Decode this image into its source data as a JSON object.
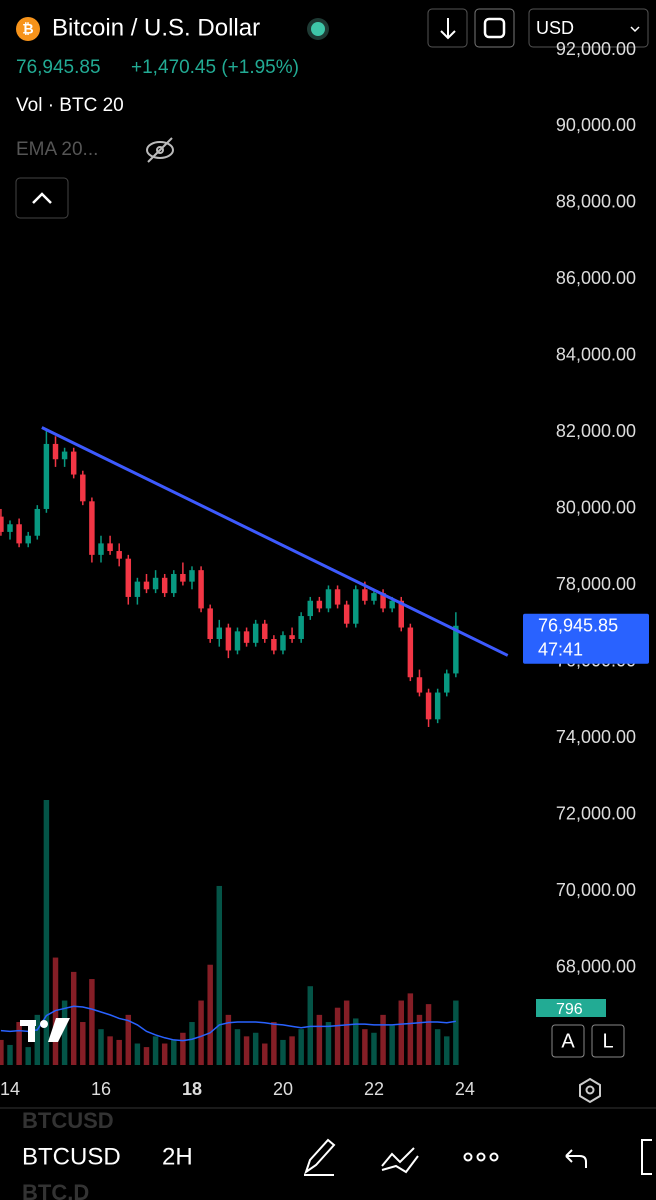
{
  "header": {
    "title": "Bitcoin / U.S. Dollar",
    "price": "76,945.85",
    "change": "+1,470.45 (+1.95%)",
    "volume_label": "Vol · BTC 20",
    "ema_label": "EMA 20...",
    "currency": "USD"
  },
  "chart_data": {
    "type": "candlestick",
    "x": [
      13.8,
      14.0,
      14.2,
      14.4,
      14.6,
      14.8,
      15.0,
      15.2,
      15.4,
      15.6,
      15.8,
      16.0,
      16.2,
      16.4,
      16.6,
      16.8,
      17.0,
      17.2,
      17.4,
      17.6,
      17.8,
      18.0,
      18.2,
      18.4,
      18.6,
      18.8,
      19.0,
      19.2,
      19.4,
      19.6,
      19.8,
      20.0,
      20.2,
      20.4,
      20.6,
      20.8,
      21.0,
      21.2,
      21.4,
      21.6,
      21.8,
      22.0,
      22.2,
      22.4,
      22.6,
      22.8,
      23.0,
      23.2,
      23.4,
      23.6,
      23.8
    ],
    "open": [
      79800,
      79400,
      79600,
      79100,
      79300,
      80000,
      81700,
      81300,
      81500,
      80900,
      80200,
      78800,
      79100,
      78900,
      78700,
      77700,
      78100,
      77900,
      78200,
      77800,
      78300,
      78100,
      78400,
      77400,
      76600,
      76900,
      76300,
      76800,
      76500,
      77000,
      76600,
      76300,
      76700,
      76600,
      77200,
      77600,
      77400,
      77900,
      77500,
      77000,
      77900,
      77600,
      77800,
      77400,
      77600,
      76900,
      75600,
      75200,
      74500,
      75200,
      75700
    ],
    "high": [
      80000,
      79700,
      79750,
      79400,
      80100,
      82100,
      81900,
      81600,
      81600,
      81000,
      80300,
      79300,
      79300,
      79100,
      78800,
      78200,
      78300,
      78400,
      78300,
      78400,
      78600,
      78500,
      78500,
      77500,
      77100,
      77000,
      76900,
      76900,
      77100,
      77100,
      76700,
      76800,
      76900,
      77300,
      77700,
      77700,
      78000,
      78000,
      77600,
      78000,
      78100,
      77900,
      77900,
      77700,
      77700,
      77000,
      75800,
      75300,
      75300,
      75800,
      77300
    ],
    "low": [
      79300,
      79200,
      79000,
      79000,
      79200,
      79900,
      81100,
      81100,
      80800,
      80100,
      78600,
      78600,
      78800,
      78500,
      77500,
      77500,
      77800,
      77800,
      77700,
      77700,
      78000,
      77900,
      77300,
      76500,
      76400,
      76100,
      76200,
      76400,
      76400,
      76500,
      76200,
      76200,
      76500,
      76500,
      77100,
      77300,
      77300,
      77400,
      76900,
      76900,
      77500,
      77500,
      77300,
      77300,
      76800,
      75500,
      75100,
      74300,
      74400,
      75100,
      75600
    ],
    "close": [
      79400,
      79600,
      79100,
      79300,
      80000,
      81700,
      81300,
      81500,
      80900,
      80200,
      78800,
      79100,
      78900,
      78700,
      77700,
      78100,
      77900,
      78200,
      77800,
      78300,
      78100,
      78400,
      77400,
      76600,
      76900,
      76300,
      76800,
      76500,
      77000,
      76600,
      76300,
      76700,
      76600,
      77200,
      77600,
      77400,
      77900,
      77500,
      77000,
      77900,
      77600,
      77800,
      77400,
      77600,
      76900,
      75600,
      75200,
      74500,
      75200,
      75700,
      76945.85
    ],
    "volume": [
      350,
      280,
      600,
      250,
      700,
      3700,
      1500,
      900,
      1300,
      600,
      1200,
      500,
      400,
      350,
      700,
      300,
      250,
      400,
      300,
      350,
      450,
      600,
      900,
      1400,
      2500,
      700,
      500,
      400,
      450,
      300,
      600,
      350,
      400,
      500,
      1100,
      700,
      600,
      800,
      900,
      650,
      500,
      450,
      700,
      550,
      900,
      1000,
      700,
      850,
      500,
      400,
      900
    ],
    "volume_ma": [
      480,
      470,
      480,
      470,
      490,
      690,
      760,
      790,
      820,
      810,
      780,
      740,
      700,
      650,
      620,
      560,
      470,
      420,
      380,
      350,
      340,
      360,
      400,
      450,
      560,
      590,
      600,
      600,
      600,
      590,
      570,
      560,
      540,
      520,
      540,
      540,
      540,
      550,
      560,
      570,
      570,
      560,
      560,
      560,
      570,
      580,
      590,
      600,
      600,
      590,
      610
    ],
    "up_color": "#089981",
    "down_color": "#f23645",
    "ma_color": "#2962ff",
    "ylim": [
      66900,
      92000
    ],
    "yticks": [
      {
        "value": 68000,
        "label": "68,000.00"
      },
      {
        "value": 70000,
        "label": "70,000.00"
      },
      {
        "value": 72000,
        "label": "72,000.00"
      },
      {
        "value": 74000,
        "label": "74,000.00"
      },
      {
        "value": 76000,
        "label": "76,000.00"
      },
      {
        "value": 78000,
        "label": "78,000.00"
      },
      {
        "value": 80000,
        "label": "80,000.00"
      },
      {
        "value": 82000,
        "label": "82,000.00"
      },
      {
        "value": 84000,
        "label": "84,000.00"
      },
      {
        "value": 86000,
        "label": "86,000.00"
      },
      {
        "value": 88000,
        "label": "88,000.00"
      },
      {
        "value": 90000,
        "label": "90,000.00"
      },
      {
        "value": 92000,
        "label": "92,000.00"
      }
    ],
    "xlim": [
      13.78,
      25.21
    ],
    "xticks": [
      14,
      16,
      18,
      20,
      22,
      24
    ],
    "highlight_xtick": 18,
    "vlim": [
      0,
      3700
    ],
    "trendline": {
      "x": [
        14.7,
        24.94
      ],
      "y": [
        82130,
        76170
      ],
      "color": "#3d5afe"
    },
    "last_price_label": "76,945.85",
    "countdown": "47:41",
    "volume_badge": "796"
  },
  "scale_buttons": [
    "A",
    "L"
  ],
  "toolbar": {
    "symbol": "BTCUSD",
    "interval": "2H"
  },
  "ghost": [
    "BTCUSD",
    "BTC.D"
  ]
}
